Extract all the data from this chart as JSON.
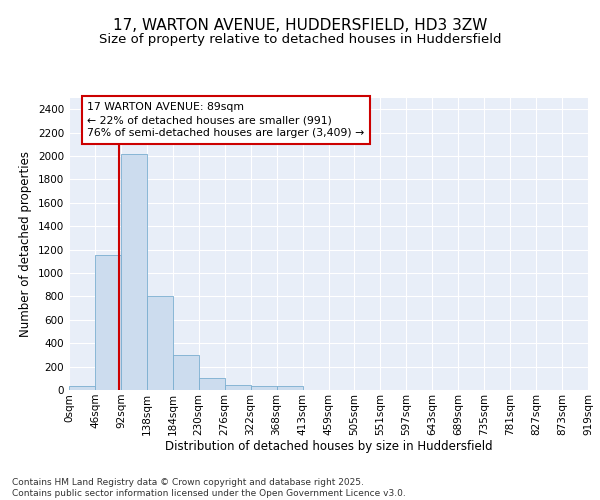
{
  "title1": "17, WARTON AVENUE, HUDDERSFIELD, HD3 3ZW",
  "title2": "Size of property relative to detached houses in Huddersfield",
  "xlabel": "Distribution of detached houses by size in Huddersfield",
  "ylabel": "Number of detached properties",
  "bar_values": [
    30,
    1150,
    2020,
    800,
    300,
    100,
    40,
    30,
    30,
    0,
    0,
    0,
    0,
    0,
    0,
    0,
    0,
    0,
    0,
    0
  ],
  "bin_labels": [
    "0sqm",
    "46sqm",
    "92sqm",
    "138sqm",
    "184sqm",
    "230sqm",
    "276sqm",
    "322sqm",
    "368sqm",
    "413sqm",
    "459sqm",
    "505sqm",
    "551sqm",
    "597sqm",
    "643sqm",
    "689sqm",
    "735sqm",
    "781sqm",
    "827sqm",
    "873sqm",
    "919sqm"
  ],
  "bar_color": "#ccdcee",
  "bar_edge_color": "#7aaed0",
  "background_color": "#e8eef8",
  "grid_color": "#ffffff",
  "vline_color": "#cc0000",
  "annotation_text": "17 WARTON AVENUE: 89sqm\n← 22% of detached houses are smaller (991)\n76% of semi-detached houses are larger (3,409) →",
  "annotation_box_color": "#cc0000",
  "ylim": [
    0,
    2500
  ],
  "yticks": [
    0,
    200,
    400,
    600,
    800,
    1000,
    1200,
    1400,
    1600,
    1800,
    2000,
    2200,
    2400
  ],
  "footer_text": "Contains HM Land Registry data © Crown copyright and database right 2025.\nContains public sector information licensed under the Open Government Licence v3.0.",
  "title1_fontsize": 11,
  "title2_fontsize": 9.5,
  "axis_label_fontsize": 8.5,
  "tick_fontsize": 7.5,
  "footer_fontsize": 6.5
}
